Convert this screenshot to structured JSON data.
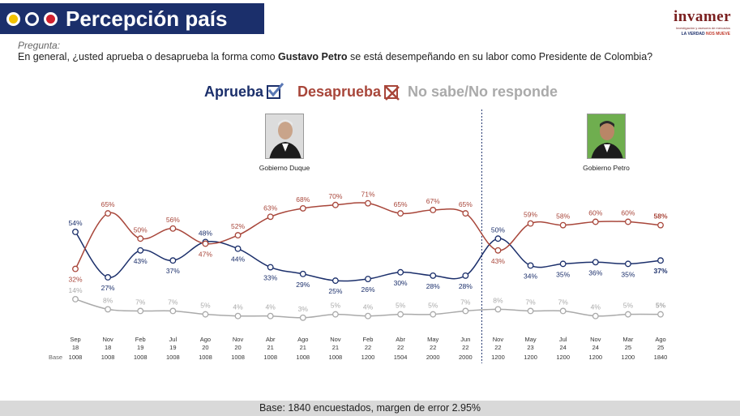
{
  "header": {
    "title": "Percepción país",
    "dot_colors": [
      "#f2c200",
      "#1b2f6b",
      "#d0202e"
    ]
  },
  "logo": {
    "name": "invamer",
    "sub": "Investigación y asesoría de mercados",
    "tag_a": "LA VERDAD ",
    "tag_b": "NOS MUEVE"
  },
  "question": {
    "label": "Pregunta:",
    "text_before": "En general, ¿usted aprueba o desaprueba la forma como ",
    "name": "Gustavo Petro",
    "text_after": " se está desempeñando en su labor como Presidente de Colombia?"
  },
  "legend": {
    "approve": "Aprueba",
    "disapprove": "Desaprueba",
    "no_answer": "No sabe/No responde"
  },
  "governments": {
    "duque": "Gobierno Duque",
    "petro": "Gobierno Petro"
  },
  "footer": {
    "text": "Base: 1840 encuestados, margen de error 2.95%"
  },
  "chart_data": {
    "type": "line",
    "base_label": "Base",
    "categories": [
      {
        "month": "Sep",
        "year": "18",
        "base": "1008"
      },
      {
        "month": "Nov",
        "year": "18",
        "base": "1008"
      },
      {
        "month": "Feb",
        "year": "19",
        "base": "1008"
      },
      {
        "month": "Jul",
        "year": "19",
        "base": "1008"
      },
      {
        "month": "Ago",
        "year": "20",
        "base": "1008"
      },
      {
        "month": "Nov",
        "year": "20",
        "base": "1008"
      },
      {
        "month": "Abr",
        "year": "21",
        "base": "1008"
      },
      {
        "month": "Ago",
        "year": "21",
        "base": "1008"
      },
      {
        "month": "Nov",
        "year": "21",
        "base": "1008"
      },
      {
        "month": "Feb",
        "year": "22",
        "base": "1200"
      },
      {
        "month": "Abr",
        "year": "22",
        "base": "1504"
      },
      {
        "month": "May",
        "year": "22",
        "base": "2000"
      },
      {
        "month": "Jun",
        "year": "22",
        "base": "2000"
      },
      {
        "month": "Nov",
        "year": "22",
        "base": "1200"
      },
      {
        "month": "May",
        "year": "23",
        "base": "1200"
      },
      {
        "month": "Jul",
        "year": "24",
        "base": "1200"
      },
      {
        "month": "Nov",
        "year": "24",
        "base": "1200"
      },
      {
        "month": "Mar",
        "year": "25",
        "base": "1200"
      },
      {
        "month": "Ago",
        "year": "25",
        "base": "1840"
      }
    ],
    "series": [
      {
        "name": "Aprueba",
        "color": "#1b2f6b",
        "values": [
          54,
          27,
          43,
          37,
          48,
          44,
          33,
          29,
          25,
          26,
          30,
          28,
          28,
          50,
          34,
          35,
          36,
          35,
          37
        ]
      },
      {
        "name": "Desaprueba",
        "color": "#a8463a",
        "values": [
          32,
          65,
          50,
          56,
          47,
          52,
          63,
          68,
          70,
          71,
          65,
          67,
          65,
          43,
          59,
          58,
          60,
          60,
          58
        ]
      },
      {
        "name": "No sabe/No responde",
        "color": "#aaaaaa",
        "values": [
          14,
          8,
          7,
          7,
          5,
          4,
          4,
          3,
          5,
          4,
          5,
          5,
          7,
          8,
          7,
          7,
          4,
          5,
          5
        ]
      }
    ],
    "value_suffix": "%",
    "divider_after_index": 12,
    "ylim": [
      0,
      80
    ]
  }
}
